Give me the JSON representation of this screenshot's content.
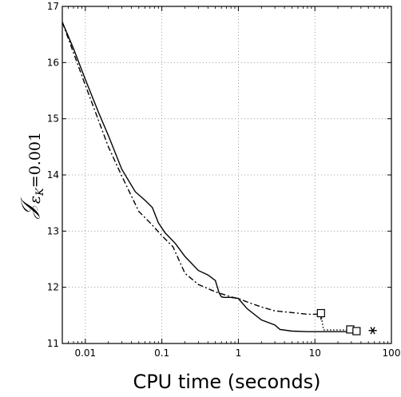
{
  "chart_data": {
    "type": "line",
    "xscale": "log",
    "xlim": [
      0.005,
      100
    ],
    "ylim": [
      11,
      17
    ],
    "grid": true,
    "xlabel": "CPU time (seconds)",
    "ylabel": "𝒥_{ε_K=0.001}",
    "xticks": [
      0.01,
      0.1,
      1,
      10,
      100
    ],
    "xtick_labels": [
      "0.01",
      "0.1",
      "1",
      "10",
      "100"
    ],
    "yticks": [
      11,
      12,
      13,
      14,
      15,
      16,
      17
    ],
    "ytick_labels": [
      "11",
      "12",
      "13",
      "14",
      "15",
      "16",
      "17"
    ],
    "series": [
      {
        "style": "solid",
        "color": "#000000",
        "x": [
          0.005,
          0.007,
          0.01,
          0.015,
          0.02,
          0.03,
          0.045,
          0.06,
          0.075,
          0.09,
          0.11,
          0.15,
          0.2,
          0.3,
          0.4,
          0.5,
          0.56,
          0.6,
          0.65,
          0.8,
          1.0,
          1.3,
          2.0,
          3.0,
          3.5,
          5.0,
          8.0,
          15.0,
          30.0,
          35.0
        ],
        "y": [
          16.72,
          16.25,
          15.7,
          15.1,
          14.7,
          14.1,
          13.7,
          13.55,
          13.42,
          13.15,
          12.97,
          12.78,
          12.55,
          12.3,
          12.22,
          12.12,
          11.9,
          11.83,
          11.82,
          11.82,
          11.8,
          11.62,
          11.42,
          11.33,
          11.25,
          11.22,
          11.21,
          11.21,
          11.21,
          11.21
        ]
      },
      {
        "style": "dashdot",
        "color": "#000000",
        "x": [
          0.005,
          0.01,
          0.02,
          0.03,
          0.05,
          0.07,
          0.1,
          0.14,
          0.2,
          0.3,
          0.5,
          0.8,
          1.0,
          1.3,
          2.0,
          3.0,
          5.0,
          8.0,
          12.0
        ],
        "y": [
          16.72,
          15.6,
          14.5,
          13.98,
          13.35,
          13.15,
          12.92,
          12.72,
          12.25,
          12.05,
          11.92,
          11.83,
          11.8,
          11.74,
          11.65,
          11.58,
          11.55,
          11.52,
          11.52
        ]
      },
      {
        "style": "dotted",
        "color": "#000000",
        "x": [
          12.0,
          13.0,
          30.0
        ],
        "y": [
          11.52,
          11.24,
          11.24
        ]
      }
    ],
    "markers": [
      {
        "shape": "square",
        "x": 12.0,
        "y": 11.54
      },
      {
        "shape": "square",
        "x": 29.0,
        "y": 11.25
      },
      {
        "shape": "square",
        "x": 35.0,
        "y": 11.22
      },
      {
        "shape": "asterisk",
        "x": 57.0,
        "y": 11.23
      }
    ],
    "error_bars": [
      {
        "x": 12.0,
        "y_low": 11.42,
        "y_high": 11.54
      }
    ]
  }
}
